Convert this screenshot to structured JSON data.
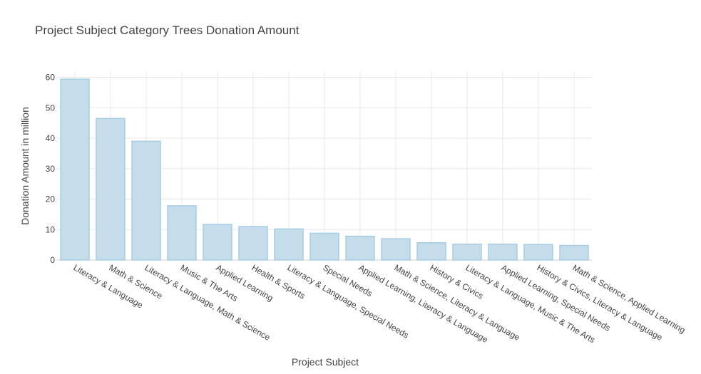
{
  "chart_data": {
    "type": "bar",
    "title": "Project Subject Category Trees Donation Amount",
    "xlabel": "Project Subject",
    "ylabel": "Donation Amount in million",
    "ylim": [
      0,
      62
    ],
    "yticks": [
      0,
      10,
      20,
      30,
      40,
      50,
      60
    ],
    "grid": true,
    "categories": [
      "Literacy & Language",
      "Math & Science",
      "Literacy & Language, Math & Science",
      "Music & The Arts",
      "Applied Learning",
      "Health & Sports",
      "Literacy & Language, Special Needs",
      "Special Needs",
      "Applied Learning, Literacy & Language",
      "Math & Science, Literacy & Language",
      "History & Civics",
      "Literacy & Language, Music & The Arts",
      "Applied Learning, Special Needs",
      "History & Civics, Literacy & Language",
      "Math & Science, Applied Learning"
    ],
    "values": [
      59.4,
      46.5,
      39.0,
      17.8,
      11.7,
      11.0,
      10.2,
      8.8,
      7.8,
      7.0,
      5.7,
      5.2,
      5.2,
      5.1,
      4.8
    ],
    "colors": {
      "bar_fill": "#c5dcea",
      "bar_stroke": "#a7cde2",
      "grid": "#e8e8e8",
      "text": "#444444"
    }
  }
}
